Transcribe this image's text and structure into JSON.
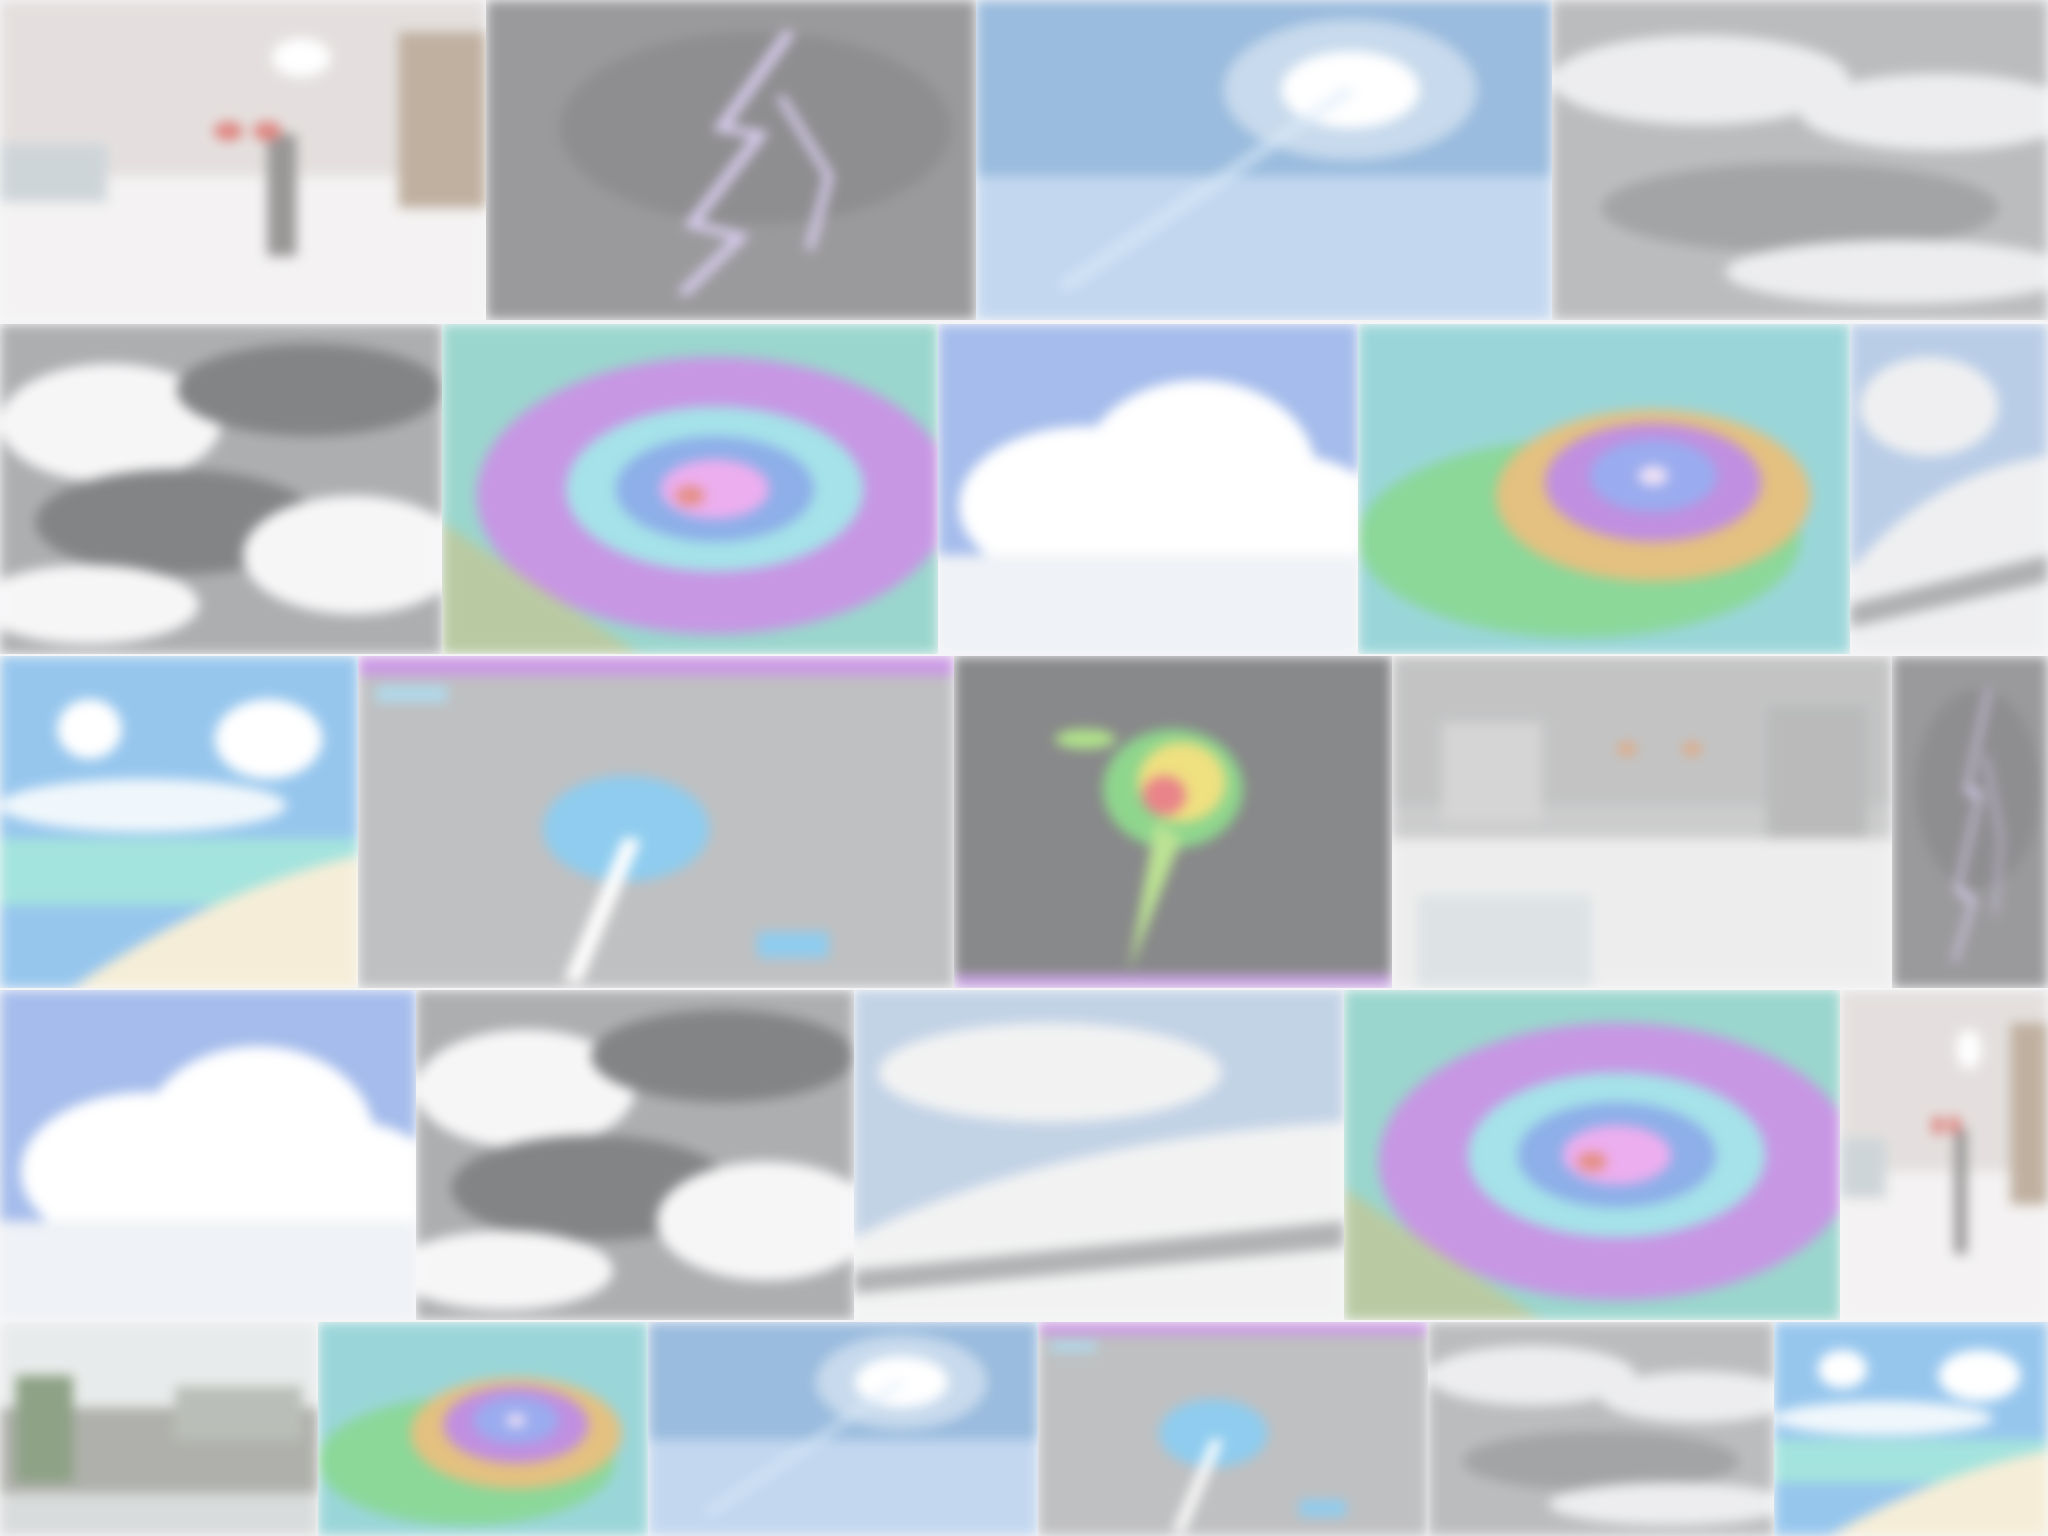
{
  "page": {
    "background": "#f4f4f6",
    "veil_opacity": 0.3
  },
  "mosaic": {
    "rows": [
      {
        "tiles": [
          {
            "scene": "snowy-city-street",
            "colors": [
              "#d8d2d0",
              "#efeded",
              "#6d6b6a"
            ]
          },
          {
            "scene": "lightning-strike",
            "colors": [
              "#6f6e71",
              "#c8b9e8",
              "#5e5d60"
            ]
          },
          {
            "scene": "sun-in-clear-sky",
            "colors": [
              "#6f9fd0",
              "#ffffff",
              "#a9c7e9"
            ]
          },
          {
            "scene": "gray-overcast-clouds",
            "colors": [
              "#9ea0a3",
              "#e5e6e8",
              "#7b7d80"
            ]
          }
        ]
      },
      {
        "tiles": [
          {
            "scene": "dark-storm-clouds",
            "colors": [
              "#8a8c8f",
              "#f3f3f4",
              "#4e5052"
            ]
          },
          {
            "scene": "hurricane-radar-eye",
            "colors": [
              "#6fc4b8",
              "#b06ad9",
              "#5d8de0"
            ]
          },
          {
            "scene": "cumulus-cloud-blue-sky",
            "colors": [
              "#7fa0e4",
              "#ffffff",
              "#e8ecf2"
            ]
          },
          {
            "scene": "hurricane-satellite-eye",
            "colors": [
              "#59c76e",
              "#a65fd4",
              "#6f88e8"
            ]
          },
          {
            "scene": "snowy-hillside",
            "colors": [
              "#9cb8dd",
              "#e8e9eb",
              "#8c8e90"
            ]
          }
        ]
      },
      {
        "tiles": [
          {
            "scene": "sunny-beach",
            "colors": [
              "#6aaee6",
              "#f1e6c6",
              "#7dd8d0"
            ]
          },
          {
            "scene": "weather-map-storm-track",
            "colors": [
              "#a4a5a7",
              "#5fb7e8",
              "#b56fd9"
            ]
          },
          {
            "scene": "storm-radar-reflectivity",
            "colors": [
              "#555658",
              "#e8d34a",
              "#e04f58"
            ]
          },
          {
            "scene": "snowy-traffic-street",
            "colors": [
              "#b6b7b8",
              "#e6e6e6",
              "#d38650"
            ]
          },
          {
            "scene": "lightning-strike",
            "colors": [
              "#6f6e71",
              "#c8b9e8",
              "#5e5d60"
            ]
          }
        ]
      },
      {
        "tiles": [
          {
            "scene": "cumulus-cloud-blue-sky",
            "colors": [
              "#7fa0e4",
              "#ffffff",
              "#e8ecf2"
            ]
          },
          {
            "scene": "dark-storm-clouds",
            "colors": [
              "#8a8c8f",
              "#f3f3f4",
              "#4e5052"
            ]
          },
          {
            "scene": "snowy-hillside",
            "colors": [
              "#a9c0dc",
              "#eceded",
              "#8f9193"
            ]
          },
          {
            "scene": "hurricane-radar-eye",
            "colors": [
              "#6fc4b8",
              "#b06ad9",
              "#5d8de0"
            ]
          },
          {
            "scene": "snowy-city-street",
            "colors": [
              "#d8d2d0",
              "#efeded",
              "#6d6b6a"
            ]
          }
        ]
      },
      {
        "tiles": [
          {
            "scene": "flooded-roadside",
            "colors": [
              "#8d8f88",
              "#dfe3e3",
              "#5d7a52"
            ]
          },
          {
            "scene": "hurricane-satellite-eye",
            "colors": [
              "#59c76e",
              "#a65fd4",
              "#6f88e8"
            ]
          },
          {
            "scene": "sun-in-clear-sky",
            "colors": [
              "#6f9fd0",
              "#ffffff",
              "#a9c7e9"
            ]
          },
          {
            "scene": "weather-map-storm-track",
            "colors": [
              "#a4a5a7",
              "#5fb7e8",
              "#b56fd9"
            ]
          },
          {
            "scene": "gray-overcast-clouds",
            "colors": [
              "#9ea0a3",
              "#e5e6e8",
              "#7b7d80"
            ]
          },
          {
            "scene": "sunny-beach",
            "colors": [
              "#6aaee6",
              "#f1e6c6",
              "#7dd8d0"
            ]
          }
        ]
      }
    ]
  }
}
